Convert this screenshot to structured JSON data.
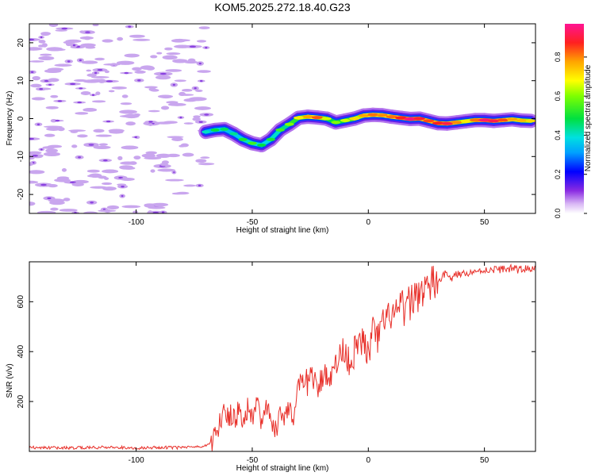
{
  "title": "KOM5.2025.272.18.40.G23",
  "colors": {
    "snr_line": "#e8302a",
    "noise": "#c9a6ee",
    "noise_dark": "#8a40e0"
  },
  "chart_data": [
    {
      "type": "heatmap",
      "xlabel": "Height of straight line (km)",
      "ylabel": "Frequency (Hz)",
      "xlim": [
        -146,
        72
      ],
      "ylim": [
        -25,
        25
      ],
      "xticks": [
        -100,
        -50,
        0,
        50
      ],
      "yticks": [
        -20,
        -10,
        0,
        10,
        20
      ],
      "colorbar": {
        "label": "Normalized spectral amplitude",
        "range": [
          0,
          0.97
        ],
        "ticks": [
          0.0,
          0.2,
          0.4,
          0.6,
          0.8
        ]
      },
      "noise_region_x": [
        -146,
        -68
      ],
      "track": {
        "x": [
          -70,
          -66,
          -62,
          -58,
          -54,
          -50,
          -46,
          -42,
          -38,
          -34,
          -30,
          -26,
          -22,
          -18,
          -14,
          -10,
          -6,
          -2,
          2,
          6,
          10,
          14,
          18,
          22,
          26,
          30,
          34,
          38,
          42,
          46,
          50,
          54,
          58,
          62,
          66,
          70
        ],
        "y": [
          -3.5,
          -3.0,
          -2.8,
          -4.0,
          -5.5,
          -6.5,
          -7.0,
          -5.5,
          -3.0,
          -1.5,
          0.2,
          0.5,
          0.3,
          0.0,
          -1.0,
          -0.5,
          0.0,
          0.8,
          1.0,
          0.9,
          0.5,
          0.2,
          -0.1,
          0.0,
          -0.6,
          -1.2,
          -1.3,
          -1.0,
          -0.7,
          -0.4,
          -0.4,
          -0.6,
          -0.4,
          -0.2,
          -0.5,
          -0.6
        ],
        "amplitude": [
          0.32,
          0.4,
          0.38,
          0.35,
          0.42,
          0.45,
          0.4,
          0.42,
          0.45,
          0.5,
          0.6,
          0.68,
          0.74,
          0.55,
          0.5,
          0.55,
          0.62,
          0.68,
          0.72,
          0.7,
          0.72,
          0.78,
          0.86,
          0.8,
          0.75,
          0.78,
          0.82,
          0.7,
          0.6,
          0.72,
          0.85,
          0.82,
          0.75,
          0.68,
          0.66,
          0.62
        ]
      }
    },
    {
      "type": "line",
      "xlabel": "Height of straight line (km)",
      "ylabel": "SNR (v/v)",
      "xlim": [
        -146,
        72
      ],
      "ylim": [
        0,
        760
      ],
      "xticks": [
        -100,
        -50,
        0,
        50
      ],
      "yticks": [
        200,
        400,
        600
      ],
      "series": [
        {
          "name": "SNR",
          "x": [
            -146,
            -140,
            -130,
            -120,
            -110,
            -100,
            -90,
            -80,
            -72,
            -68,
            -66,
            -64,
            -62,
            -60,
            -58,
            -56,
            -54,
            -52,
            -50,
            -48,
            -46,
            -44,
            -42,
            -40,
            -38,
            -36,
            -34,
            -32,
            -30,
            -28,
            -26,
            -24,
            -22,
            -20,
            -18,
            -16,
            -14,
            -12,
            -10,
            -8,
            -6,
            -4,
            -2,
            0,
            2,
            4,
            6,
            8,
            10,
            12,
            14,
            16,
            18,
            20,
            22,
            24,
            26,
            28,
            30,
            32,
            34,
            36,
            38,
            40,
            42,
            44,
            46,
            48,
            50,
            52,
            54,
            56,
            58,
            60,
            62,
            64,
            66,
            68,
            70,
            72
          ],
          "y": [
            15,
            16,
            14,
            15,
            17,
            14,
            16,
            15,
            18,
            30,
            60,
            120,
            170,
            150,
            130,
            160,
            140,
            180,
            150,
            190,
            130,
            170,
            120,
            90,
            150,
            140,
            200,
            120,
            250,
            260,
            280,
            320,
            220,
            300,
            330,
            280,
            360,
            380,
            420,
            350,
            400,
            420,
            450,
            380,
            480,
            450,
            500,
            520,
            560,
            540,
            580,
            560,
            600,
            620,
            640,
            650,
            660,
            670,
            680,
            700,
            720,
            690,
            710,
            710,
            720,
            715,
            725,
            720,
            730,
            725,
            730,
            728,
            732,
            730,
            735,
            728,
            730,
            732,
            735,
            730
          ]
        }
      ]
    }
  ]
}
